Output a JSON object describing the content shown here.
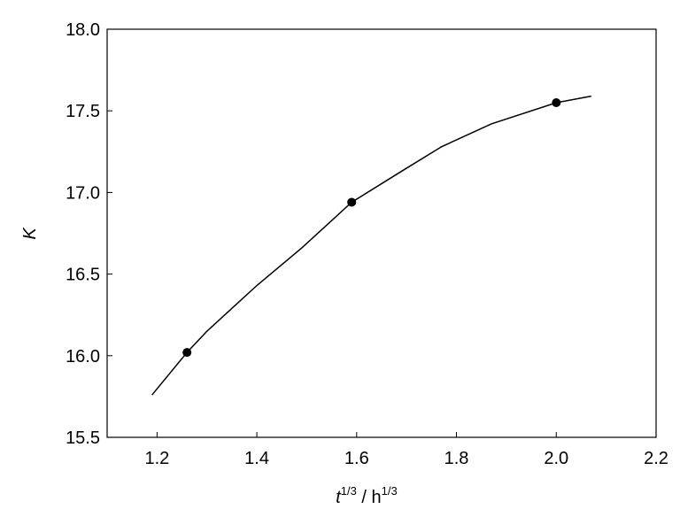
{
  "chart_data": {
    "type": "line",
    "xlabel": [
      "t",
      "1/3",
      " / h",
      "1/3"
    ],
    "ylabel": "K",
    "line": {
      "color": "#000000",
      "x": [
        1.19,
        1.26,
        1.3,
        1.4,
        1.49,
        1.59,
        1.69,
        1.77,
        1.87,
        2.0,
        2.07
      ],
      "y": [
        15.76,
        16.02,
        16.15,
        16.43,
        16.66,
        16.94,
        17.13,
        17.28,
        17.42,
        17.55,
        17.59
      ]
    },
    "points": {
      "color": "#000000",
      "x": [
        1.26,
        1.59,
        2.0
      ],
      "y": [
        16.02,
        16.94,
        17.55
      ]
    },
    "xlim": [
      1.1,
      2.2
    ],
    "ylim": [
      15.5,
      18.0
    ],
    "xticks": [
      1.2,
      1.4,
      1.6,
      1.8,
      {
        "value": 2.0,
        "label": "2.0"
      },
      2.2
    ],
    "yticks": [
      15.5,
      {
        "value": 16.0,
        "label": "16.0"
      },
      16.5,
      {
        "value": 17.0,
        "label": "17.0"
      },
      17.5,
      {
        "value": 18.0,
        "label": "18.0"
      }
    ]
  }
}
